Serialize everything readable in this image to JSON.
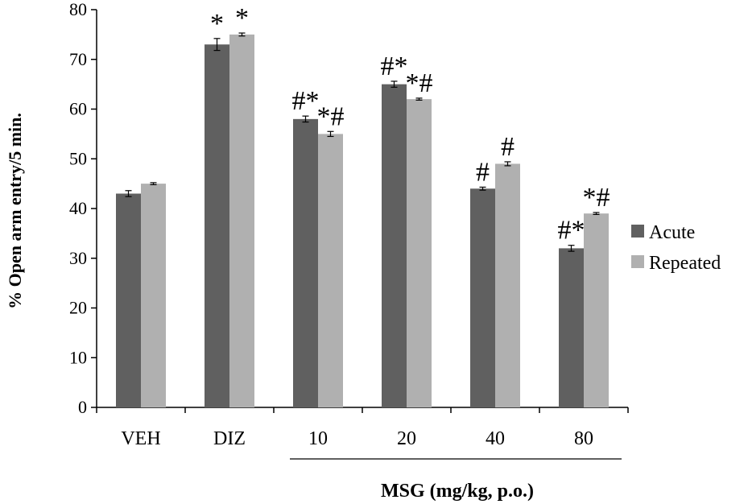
{
  "chart_data": {
    "type": "bar",
    "categories": [
      "VEH",
      "DIZ",
      "10",
      "20",
      "40",
      "80"
    ],
    "series": [
      {
        "name": "Acute",
        "legend_label": "Acute",
        "color": "#606060",
        "values": [
          43,
          73,
          58,
          65,
          44,
          32
        ],
        "errors": [
          0.6,
          1.2,
          0.6,
          0.6,
          0.3,
          0.6
        ],
        "annotations": [
          "",
          "*",
          "#*",
          "#*",
          "#",
          "#*"
        ]
      },
      {
        "name": "Repeated",
        "legend_label": "Repeated",
        "color": "#b0b0b0",
        "values": [
          45,
          75,
          55,
          62,
          49,
          39
        ],
        "errors": [
          0.2,
          0.3,
          0.5,
          0.2,
          0.4,
          0.2
        ],
        "annotations": [
          "",
          "*",
          "*#",
          "*#",
          "#",
          "*#"
        ]
      }
    ],
    "ylabel": "%  Open arm entry/5 min.",
    "group_label": "MSG (mg/kg, p.o.)",
    "group_label_spans": [
      "10",
      "20",
      "40",
      "80"
    ],
    "ylim": [
      0,
      80
    ],
    "yticks": [
      0,
      10,
      20,
      30,
      40,
      50,
      60,
      70,
      80
    ],
    "grid": false,
    "legend_position": "right"
  }
}
